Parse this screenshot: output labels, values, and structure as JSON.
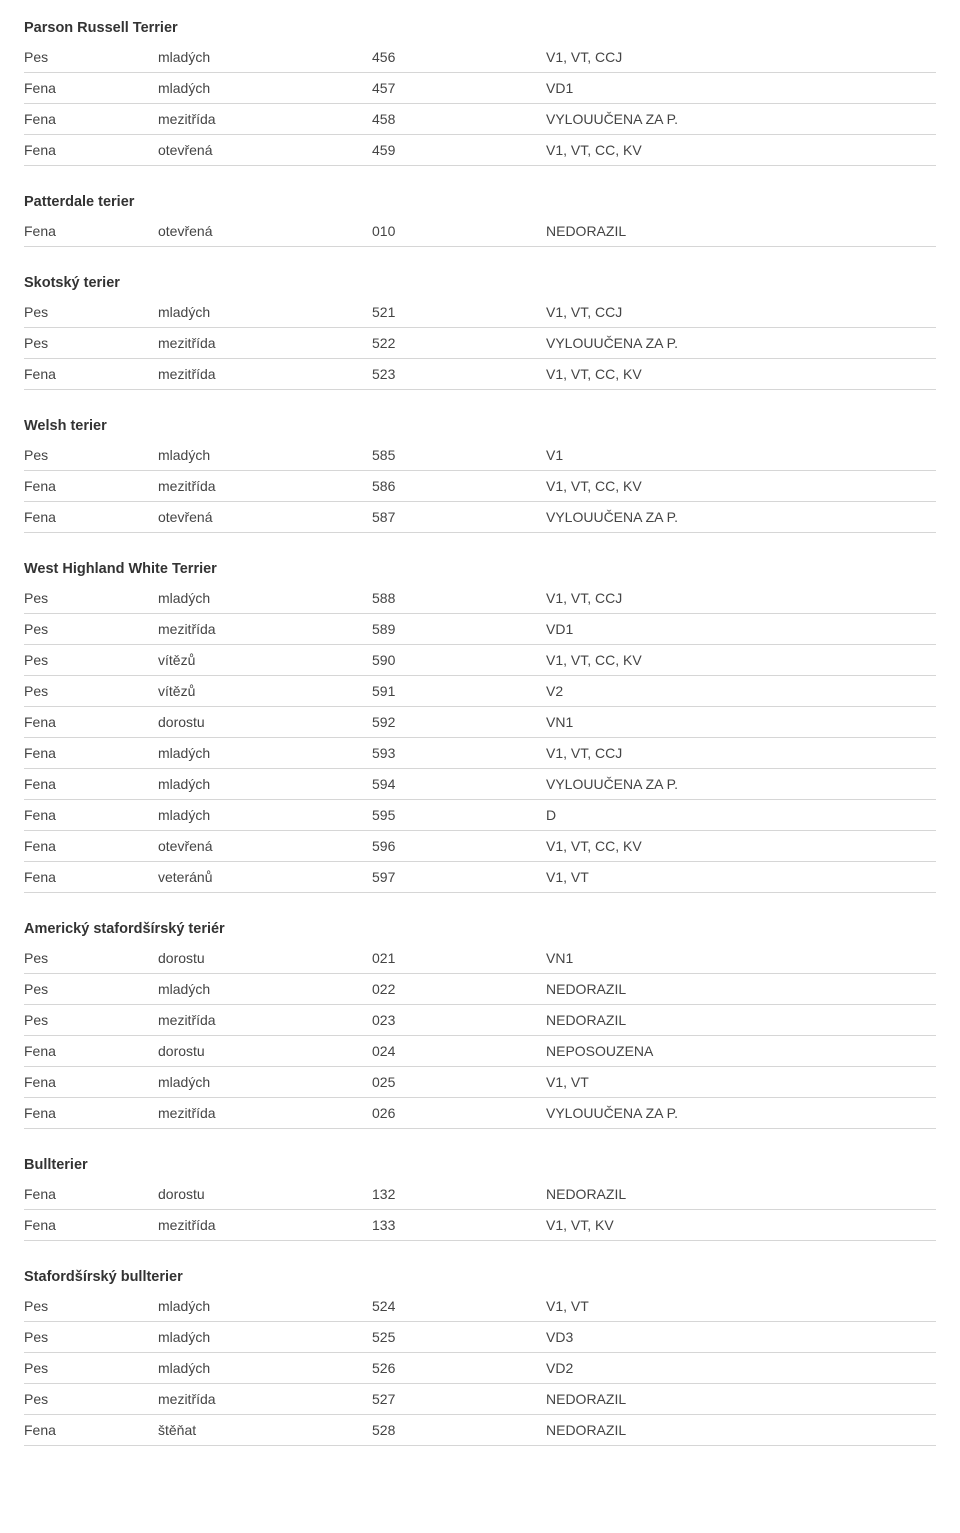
{
  "breeds": [
    {
      "name": "Parson Russell Terrier",
      "rows": [
        {
          "sex": "Pes",
          "cls": "mladých",
          "num": "456",
          "res": "V1, VT, CCJ"
        },
        {
          "sex": "Fena",
          "cls": "mladých",
          "num": "457",
          "res": "VD1"
        },
        {
          "sex": "Fena",
          "cls": "mezitřída",
          "num": "458",
          "res": "VYLOUUČENA ZA P."
        },
        {
          "sex": "Fena",
          "cls": "otevřená",
          "num": "459",
          "res": "V1, VT, CC, KV"
        }
      ]
    },
    {
      "name": "Patterdale terier",
      "rows": [
        {
          "sex": "Fena",
          "cls": "otevřená",
          "num": "010",
          "res": "NEDORAZIL"
        }
      ]
    },
    {
      "name": "Skotský terier",
      "rows": [
        {
          "sex": "Pes",
          "cls": "mladých",
          "num": "521",
          "res": "V1, VT, CCJ"
        },
        {
          "sex": "Pes",
          "cls": "mezitřída",
          "num": "522",
          "res": "VYLOUUČENA ZA P."
        },
        {
          "sex": "Fena",
          "cls": "mezitřída",
          "num": "523",
          "res": "V1, VT, CC, KV"
        }
      ]
    },
    {
      "name": "Welsh terier",
      "rows": [
        {
          "sex": "Pes",
          "cls": "mladých",
          "num": "585",
          "res": "V1"
        },
        {
          "sex": "Fena",
          "cls": "mezitřída",
          "num": "586",
          "res": "V1, VT, CC, KV"
        },
        {
          "sex": "Fena",
          "cls": "otevřená",
          "num": "587",
          "res": "VYLOUUČENA ZA P."
        }
      ]
    },
    {
      "name": "West Highland White Terrier",
      "rows": [
        {
          "sex": "Pes",
          "cls": "mladých",
          "num": "588",
          "res": "V1, VT, CCJ"
        },
        {
          "sex": "Pes",
          "cls": "mezitřída",
          "num": "589",
          "res": "VD1"
        },
        {
          "sex": "Pes",
          "cls": "vítězů",
          "num": "590",
          "res": "V1, VT, CC, KV"
        },
        {
          "sex": "Pes",
          "cls": "vítězů",
          "num": "591",
          "res": "V2"
        },
        {
          "sex": "Fena",
          "cls": "dorostu",
          "num": "592",
          "res": "VN1"
        },
        {
          "sex": "Fena",
          "cls": "mladých",
          "num": "593",
          "res": "V1, VT, CCJ"
        },
        {
          "sex": "Fena",
          "cls": "mladých",
          "num": "594",
          "res": "VYLOUUČENA ZA P."
        },
        {
          "sex": "Fena",
          "cls": "mladých",
          "num": "595",
          "res": "D"
        },
        {
          "sex": "Fena",
          "cls": "otevřená",
          "num": "596",
          "res": "V1, VT, CC, KV"
        },
        {
          "sex": "Fena",
          "cls": "veteránů",
          "num": "597",
          "res": "V1, VT"
        }
      ]
    },
    {
      "name": "Americký stafordšírský teriér",
      "rows": [
        {
          "sex": "Pes",
          "cls": "dorostu",
          "num": "021",
          "res": "VN1"
        },
        {
          "sex": "Pes",
          "cls": "mladých",
          "num": "022",
          "res": "NEDORAZIL"
        },
        {
          "sex": "Pes",
          "cls": "mezitřída",
          "num": "023",
          "res": "NEDORAZIL"
        },
        {
          "sex": "Fena",
          "cls": "dorostu",
          "num": "024",
          "res": "NEPOSOUZENA"
        },
        {
          "sex": "Fena",
          "cls": "mladých",
          "num": "025",
          "res": "V1, VT"
        },
        {
          "sex": "Fena",
          "cls": "mezitřída",
          "num": "026",
          "res": "VYLOUUČENA ZA P."
        }
      ]
    },
    {
      "name": "Bullterier",
      "rows": [
        {
          "sex": "Fena",
          "cls": "dorostu",
          "num": "132",
          "res": "NEDORAZIL"
        },
        {
          "sex": "Fena",
          "cls": "mezitřída",
          "num": "133",
          "res": "V1, VT, KV"
        }
      ]
    },
    {
      "name": "Stafordšírský bullterier",
      "rows": [
        {
          "sex": "Pes",
          "cls": "mladých",
          "num": "524",
          "res": "V1, VT"
        },
        {
          "sex": "Pes",
          "cls": "mladých",
          "num": "525",
          "res": "VD3"
        },
        {
          "sex": "Pes",
          "cls": "mladých",
          "num": "526",
          "res": "VD2"
        },
        {
          "sex": "Pes",
          "cls": "mezitřída",
          "num": "527",
          "res": "NEDORAZIL"
        },
        {
          "sex": "Fena",
          "cls": "štěňat",
          "num": "528",
          "res": "NEDORAZIL"
        }
      ]
    }
  ]
}
